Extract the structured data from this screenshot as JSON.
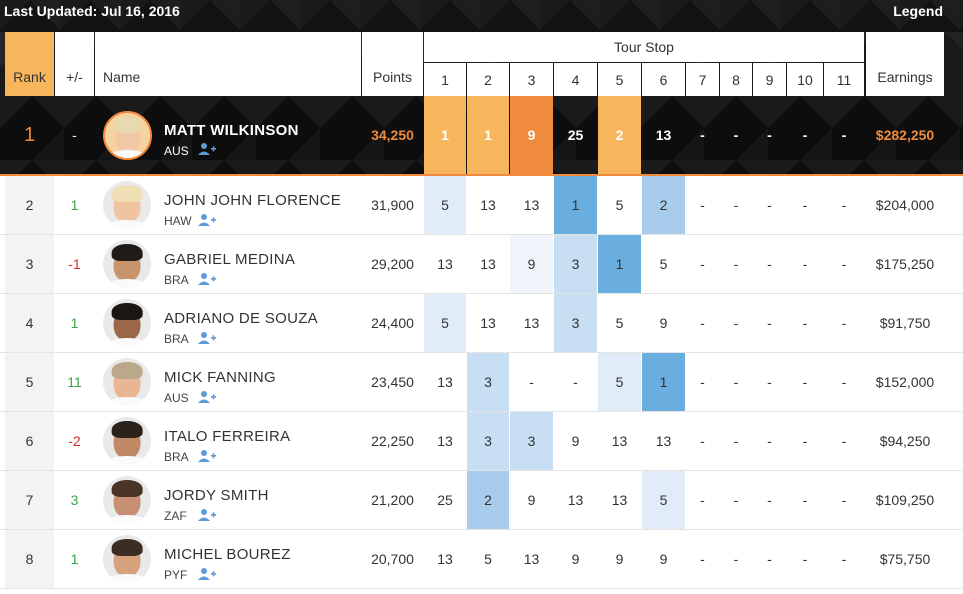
{
  "topbar": {
    "updated": "Last Updated: Jul 16, 2016",
    "legend": "Legend"
  },
  "header": {
    "rank": "Rank",
    "change": "+/-",
    "name": "Name",
    "points": "Points",
    "tour_stop": "Tour Stop",
    "stops": [
      "1",
      "2",
      "3",
      "4",
      "5",
      "6",
      "7",
      "8",
      "9",
      "10",
      "11"
    ],
    "earnings": "Earnings"
  },
  "leader": {
    "rank": "1",
    "change": "-",
    "name": "MATT WILKINSON",
    "country": "AUS",
    "points": "34,250",
    "stops": [
      "1",
      "1",
      "9",
      "25",
      "2",
      "13",
      "-",
      "-",
      "-",
      "-",
      "-"
    ],
    "earnings": "$282,250"
  },
  "rows": [
    {
      "rank": "2",
      "change": "1",
      "name": "JOHN JOHN FLORENCE",
      "country": "HAW",
      "points": "31,900",
      "stops": [
        "5",
        "13",
        "13",
        "1",
        "5",
        "2",
        "-",
        "-",
        "-",
        "-",
        "-"
      ],
      "earnings": "$204,000"
    },
    {
      "rank": "3",
      "change": "-1",
      "name": "GABRIEL MEDINA",
      "country": "BRA",
      "points": "29,200",
      "stops": [
        "13",
        "13",
        "9",
        "3",
        "1",
        "5",
        "-",
        "-",
        "-",
        "-",
        "-"
      ],
      "earnings": "$175,250"
    },
    {
      "rank": "4",
      "change": "1",
      "name": "ADRIANO DE SOUZA",
      "country": "BRA",
      "points": "24,400",
      "stops": [
        "5",
        "13",
        "13",
        "3",
        "5",
        "9",
        "-",
        "-",
        "-",
        "-",
        "-"
      ],
      "earnings": "$91,750"
    },
    {
      "rank": "5",
      "change": "11",
      "name": "MICK FANNING",
      "country": "AUS",
      "points": "23,450",
      "stops": [
        "13",
        "3",
        "-",
        "-",
        "5",
        "1",
        "-",
        "-",
        "-",
        "-",
        "-"
      ],
      "earnings": "$152,000"
    },
    {
      "rank": "6",
      "change": "-2",
      "name": "ITALO FERREIRA",
      "country": "BRA",
      "points": "22,250",
      "stops": [
        "13",
        "3",
        "3",
        "9",
        "13",
        "13",
        "-",
        "-",
        "-",
        "-",
        "-"
      ],
      "earnings": "$94,250"
    },
    {
      "rank": "7",
      "change": "3",
      "name": "JORDY SMITH",
      "country": "ZAF",
      "points": "21,200",
      "stops": [
        "25",
        "2",
        "9",
        "13",
        "13",
        "5",
        "-",
        "-",
        "-",
        "-",
        "-"
      ],
      "earnings": "$109,250"
    },
    {
      "rank": "8",
      "change": "1",
      "name": "MICHEL BOUREZ",
      "country": "PYF",
      "points": "20,700",
      "stops": [
        "13",
        "5",
        "13",
        "9",
        "9",
        "9",
        "-",
        "-",
        "-",
        "-",
        "-"
      ],
      "earnings": "$75,750"
    }
  ],
  "colors": {
    "accent_orange": "#f08a3c",
    "accent_light_orange": "#f7b55c",
    "up_green": "#3aa64a",
    "down_red": "#d42b2b"
  },
  "icons": {
    "follow": "add-user-icon"
  }
}
